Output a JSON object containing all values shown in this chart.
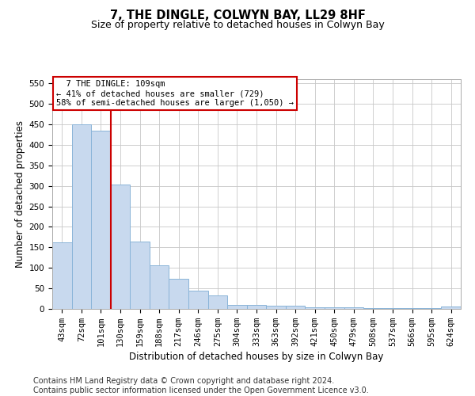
{
  "title": "7, THE DINGLE, COLWYN BAY, LL29 8HF",
  "subtitle": "Size of property relative to detached houses in Colwyn Bay",
  "xlabel": "Distribution of detached houses by size in Colwyn Bay",
  "ylabel": "Number of detached properties",
  "footer_line1": "Contains HM Land Registry data © Crown copyright and database right 2024.",
  "footer_line2": "Contains public sector information licensed under the Open Government Licence v3.0.",
  "categories": [
    "43sqm",
    "72sqm",
    "101sqm",
    "130sqm",
    "159sqm",
    "188sqm",
    "217sqm",
    "246sqm",
    "275sqm",
    "304sqm",
    "333sqm",
    "363sqm",
    "392sqm",
    "421sqm",
    "450sqm",
    "479sqm",
    "508sqm",
    "537sqm",
    "566sqm",
    "595sqm",
    "624sqm"
  ],
  "values": [
    162,
    450,
    435,
    303,
    165,
    106,
    73,
    44,
    33,
    10,
    10,
    8,
    8,
    4,
    4,
    3,
    2,
    2,
    2,
    1,
    5
  ],
  "bar_color": "#c8d9ee",
  "bar_edge_color": "#8ab4d8",
  "red_line_color": "#cc0000",
  "annotation_text": "  7 THE DINGLE: 109sqm  \n← 41% of detached houses are smaller (729)\n58% of semi-detached houses are larger (1,050) →",
  "annotation_box_color": "#ffffff",
  "annotation_box_edge": "#cc0000",
  "ylim": [
    0,
    560
  ],
  "yticks": [
    0,
    50,
    100,
    150,
    200,
    250,
    300,
    350,
    400,
    450,
    500,
    550
  ],
  "background_color": "#ffffff",
  "grid_color": "#c8c8c8",
  "title_fontsize": 10.5,
  "subtitle_fontsize": 9,
  "axis_label_fontsize": 8.5,
  "tick_fontsize": 7.5,
  "footer_fontsize": 7
}
